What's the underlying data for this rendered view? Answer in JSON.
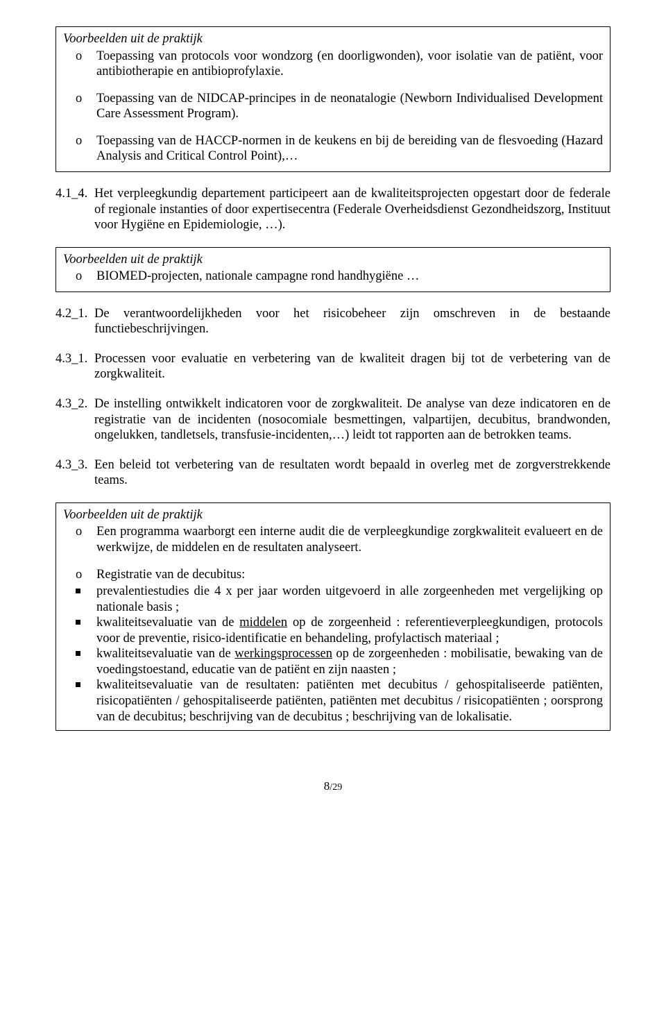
{
  "box1": {
    "title": "Voorbeelden uit de praktijk",
    "items": [
      "Toepassing van protocols voor wondzorg (en doorligwonden), voor isolatie van de patiënt, voor antibiotherapie en antibioprofylaxie.",
      "Toepassing van de NIDCAP-principes in de neonatalogie (Newborn Individualised Development Care Assessment Program).",
      "Toepassing van de HACCP-normen in de keukens en bij de bereiding van de flesvoeding (Hazard Analysis and Critical Control Point),…"
    ]
  },
  "para_4_1_4": {
    "label": "4.1_4.",
    "text": "Het verpleegkundig departement participeert aan de kwaliteitsprojecten opgestart door de federale of regionale instanties of door expertisecentra (Federale Overheidsdienst Gezondheidszorg, Instituut voor Hygiëne en Epidemiologie, …)."
  },
  "box2": {
    "title": "Voorbeelden uit de praktijk",
    "item": "BIOMED-projecten, nationale campagne rond handhygiëne …"
  },
  "para_4_2_1": {
    "label": "4.2_1.",
    "text": "De verantwoordelijkheden voor het risicobeheer zijn omschreven in de bestaande functiebeschrijvingen."
  },
  "para_4_3_1": {
    "label": "4.3_1.",
    "text": "Processen voor evaluatie en verbetering van de kwaliteit dragen bij tot de verbetering van de zorgkwaliteit."
  },
  "para_4_3_2": {
    "label": "4.3_2.",
    "text": "De instelling ontwikkelt indicatoren voor de zorgkwaliteit.  De analyse van deze indicatoren en de registratie van de incidenten (nosocomiale besmettingen, valpartijen, decubitus, brandwonden, ongelukken, tandletsels, transfusie-incidenten,…) leidt tot rapporten aan de betrokken teams."
  },
  "para_4_3_3": {
    "label": "4.3_3.",
    "text": "Een beleid tot verbetering van de resultaten wordt bepaald in overleg met de zorgverstrekkende teams."
  },
  "box3": {
    "title": "Voorbeelden uit de praktijk",
    "o1": "Een programma waarborgt een interne audit die de verpleegkundige zorgkwaliteit evalueert en  de werkwijze, de middelen en de resultaten analyseert.",
    "o2": "Registratie van de decubitus:",
    "sq1": "prevalentiestudies die 4 x per jaar worden uitgevoerd in alle zorgeenheden met vergelijking op nationale basis ;",
    "sq2_pre": "kwaliteitsevaluatie van de ",
    "sq2_u": "middelen",
    "sq2_post": " op de zorgeenheid : referentieverpleegkundigen, protocols voor de preventie, risico-identificatie en behandeling, profylactisch materiaal ;",
    "sq3_pre": "kwaliteitsevaluatie van de ",
    "sq3_u": "werkingsprocessen",
    "sq3_post": " op de zorgeenheden : mobilisatie, bewaking van de voedingstoestand, educatie van de patiënt en zijn naasten ;",
    "sq4": "kwaliteitsevaluatie van de resultaten: patiënten met decubitus / gehospitaliseerde patiënten, risicopatiënten / gehospitaliseerde patiënten, patiënten met decubitus / risicopatiënten ; oorsprong van de decubitus; beschrijving van de decubitus ; beschrijving van de lokalisatie."
  },
  "pagenum": {
    "current": "8",
    "sep": "/",
    "total": "29"
  }
}
